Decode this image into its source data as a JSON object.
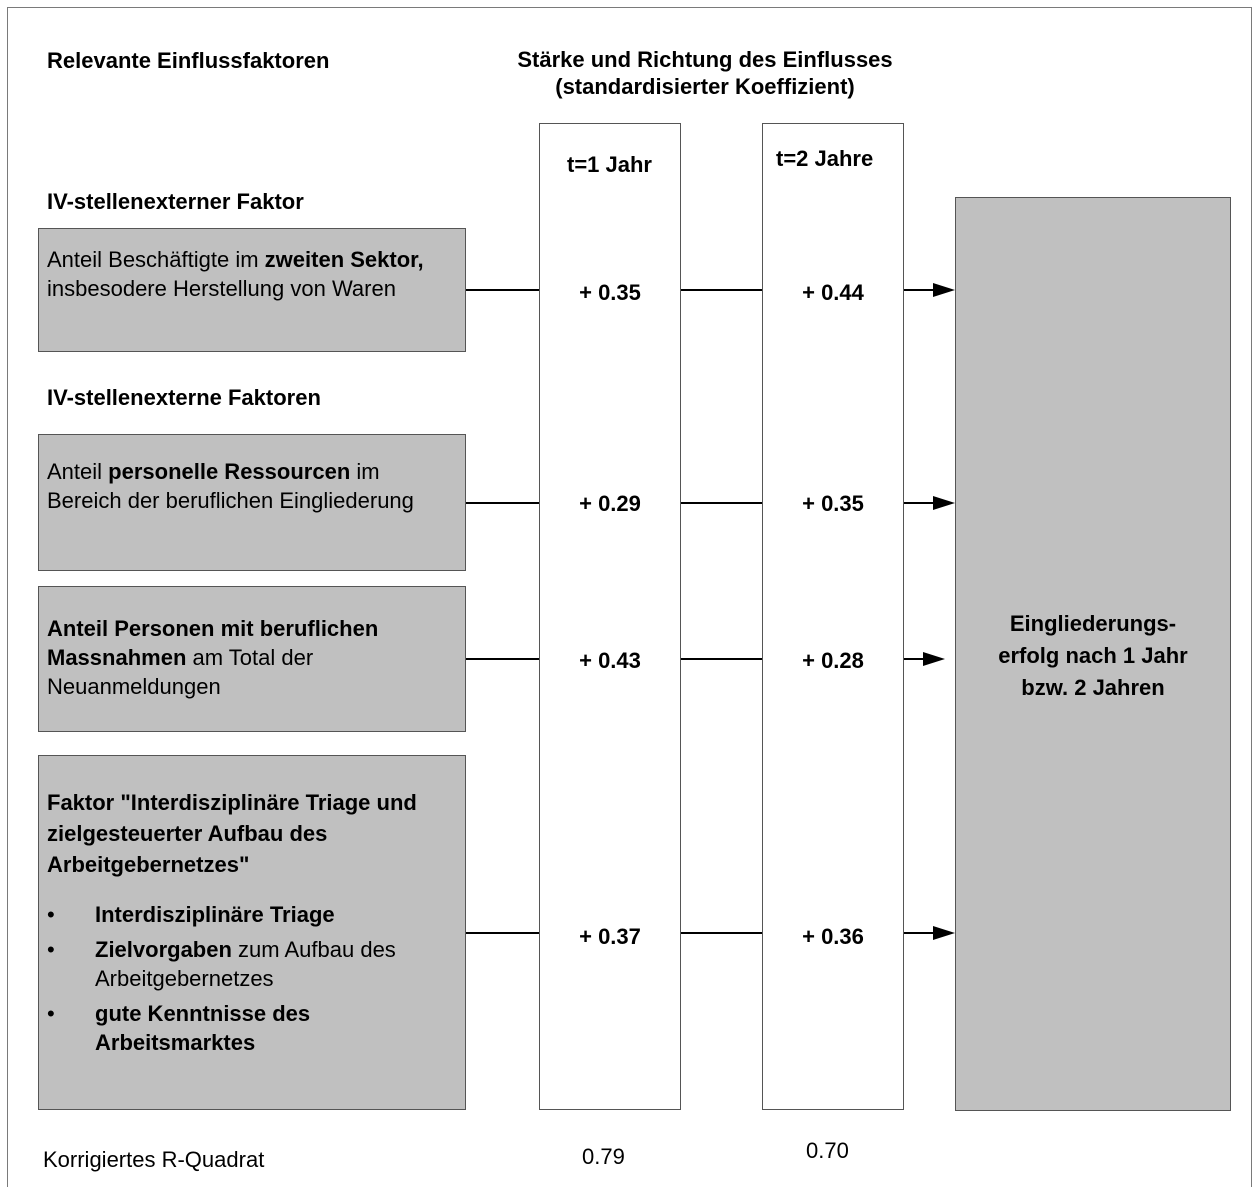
{
  "header": {
    "left_title": "Relevante Einflussfaktoren",
    "center_title_line1": "Stärke und Richtung des Einflusses",
    "center_title_line2": "(standardisierter Koeffizient)"
  },
  "columns": {
    "t1_label": "t=1 Jahr",
    "t2_label": "t=2 Jahre"
  },
  "sections": {
    "external_single": "IV-stellenexterner Faktor",
    "external_multi": "IV-stellenexterne Faktoren"
  },
  "factors": [
    {
      "parts": [
        {
          "text": "Anteil Beschäftigte im ",
          "bold": false
        },
        {
          "text": "zweiten Sektor,",
          "bold": true
        },
        {
          "text": " insbesodere Herstellung von Waren",
          "bold": false
        }
      ],
      "coef_t1": "+ 0.35",
      "coef_t2": "+ 0.44"
    },
    {
      "parts": [
        {
          "text": "Anteil ",
          "bold": false
        },
        {
          "text": "personelle Ressourcen",
          "bold": true
        },
        {
          "text": " im Bereich der beruflichen Eingliederung",
          "bold": false
        }
      ],
      "coef_t1": "+ 0.29",
      "coef_t2": "+ 0.35"
    },
    {
      "parts": [
        {
          "text": "Anteil Personen mit beruflichen Massnahmen",
          "bold": true
        },
        {
          "text": " am Total der Neuanmeldungen",
          "bold": false
        }
      ],
      "coef_t1": "+ 0.43",
      "coef_t2": "+ 0.28"
    },
    {
      "title": "Faktor \"Interdisziplinäre Triage und zielgesteuerter Aufbau des Arbeitgebernetzes\"",
      "bullet_symbol": "•",
      "bullets": [
        [
          {
            "text": "Interdisziplinäre Triage",
            "bold": true
          }
        ],
        [
          {
            "text": "Zielvorgaben",
            "bold": true
          },
          {
            "text": " zum Aufbau des Arbeitgebernetzes",
            "bold": false
          }
        ],
        [
          {
            "text": "gute Kenntnisse des Arbeitsmarktes",
            "bold": true
          }
        ]
      ],
      "coef_t1": "+ 0.37",
      "coef_t2": "+ 0.36"
    }
  ],
  "outcome": {
    "text": "Eingliederungs-\nerfolg nach 1 Jahr\nbzw. 2 Jahren"
  },
  "footer": {
    "label": "Korrigiertes R-Quadrat",
    "r2_t1": "0.79",
    "r2_t2": "0.70"
  },
  "colors": {
    "box_fill": "#c0c0c0",
    "border": "#555555"
  }
}
